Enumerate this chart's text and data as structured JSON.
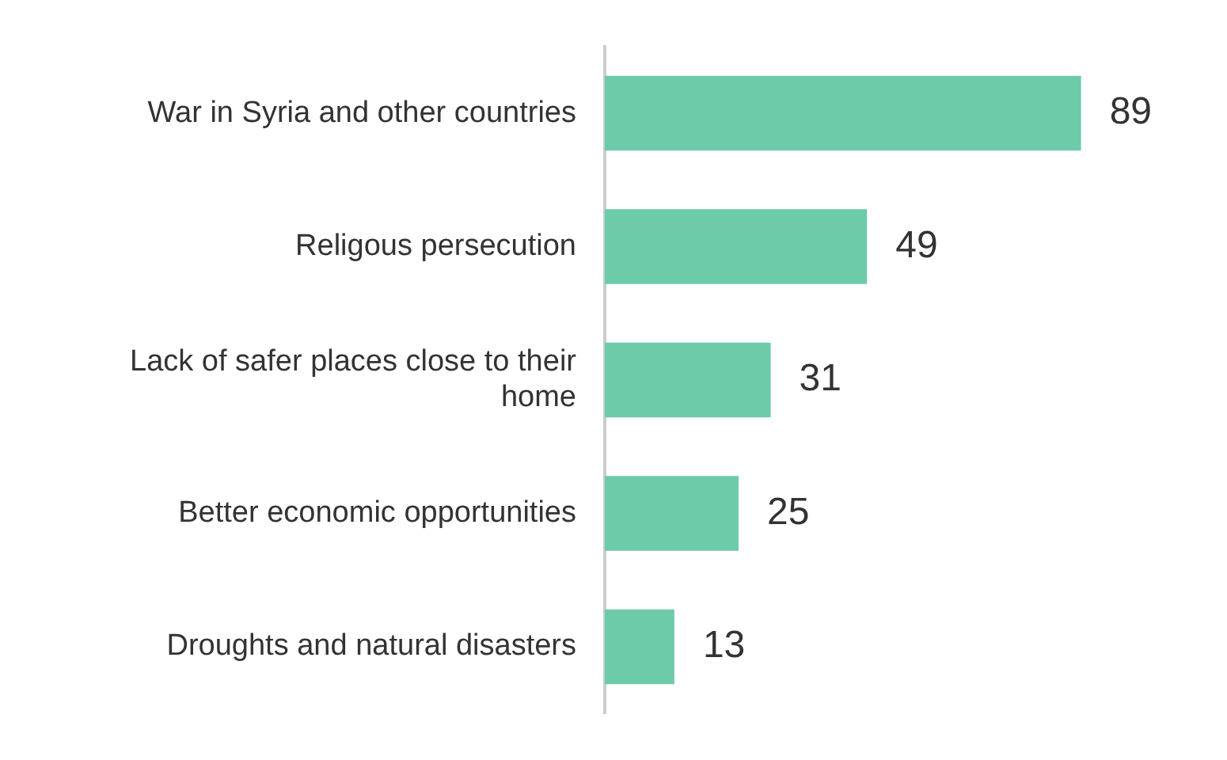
{
  "chart_data": {
    "type": "bar",
    "orientation": "horizontal",
    "categories": [
      "War in Syria and other countries",
      "Religous persecution",
      "Lack of safer places close to their home",
      "Better economic opportunities",
      "Droughts and natural disasters"
    ],
    "values": [
      89,
      49,
      31,
      25,
      13
    ],
    "color": "#6dcbaa",
    "data_labels": true
  }
}
